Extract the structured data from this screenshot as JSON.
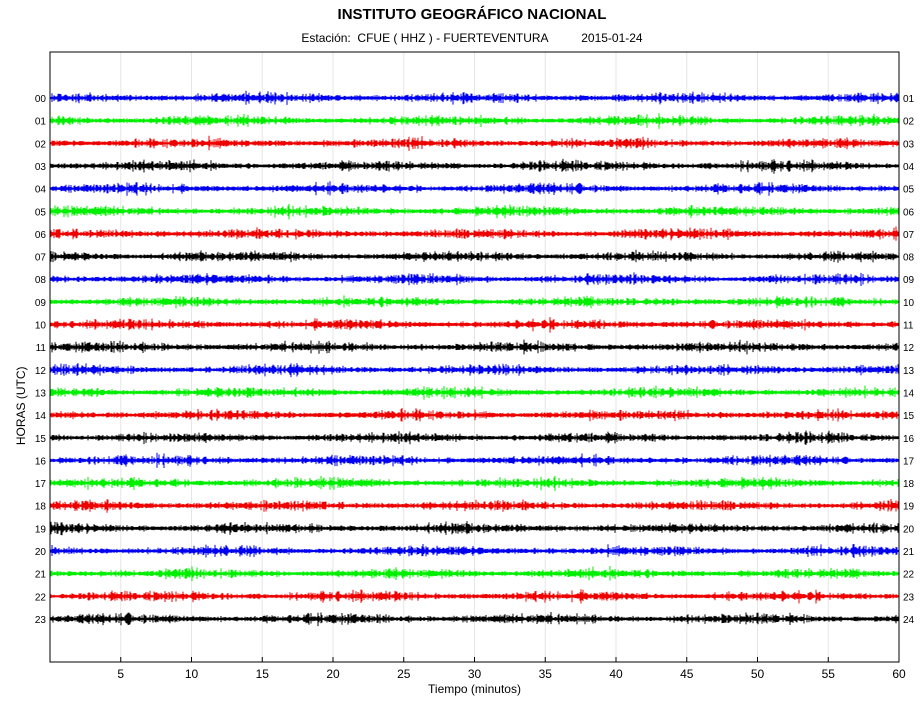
{
  "header": {
    "title": "INSTITUTO GEOGRÁFICO NACIONAL",
    "station_label": "Estación:",
    "station": "CFUE ( HHZ ) - FUERTEVENTURA",
    "date": "2015-01-24"
  },
  "chart_data": {
    "type": "line",
    "title": "INSTITUTO GEOGRÁFICO NACIONAL",
    "subtitle": "Estación:  CFUE ( HHZ ) - FUERTEVENTURA          2015-01-24",
    "xlabel": "Tiempo (minutos)",
    "ylabel": "HORAS (UTC)",
    "xlim": [
      0,
      60
    ],
    "x_ticks": [
      "5",
      "10",
      "15",
      "20",
      "25",
      "30",
      "35",
      "40",
      "45",
      "50",
      "55",
      "60"
    ],
    "x_grid": true,
    "left_hour_labels": [
      "00",
      "01",
      "02",
      "03",
      "04",
      "05",
      "06",
      "07",
      "08",
      "09",
      "10",
      "11",
      "12",
      "13",
      "14",
      "15",
      "16",
      "17",
      "18",
      "19",
      "20",
      "21",
      "22",
      "23"
    ],
    "right_hour_labels": [
      "01",
      "02",
      "03",
      "04",
      "05",
      "06",
      "07",
      "08",
      "09",
      "10",
      "11",
      "12",
      "13",
      "14",
      "15",
      "16",
      "17",
      "18",
      "19",
      "20",
      "21",
      "22",
      "23",
      "24"
    ],
    "trace_colors": [
      "#0000ee",
      "#00ee00",
      "#ee0000",
      "#000000"
    ],
    "traces_description": "24 continuous seismograph traces, one per UTC hour, low-amplitude background noise (no significant events)",
    "noise_amplitude_relative": 0.4
  }
}
